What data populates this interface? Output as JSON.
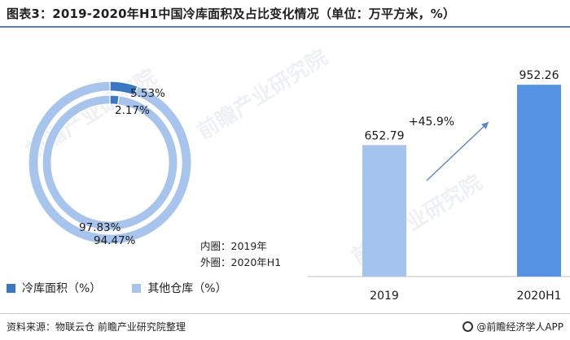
{
  "title": "图表3：2019-2020年H1中国冷库面积及占比变化情况（单位：万平方米，%）",
  "legend": [
    {
      "label": "冷库面积（%）",
      "color": "#3a78c6"
    },
    {
      "label": "其他仓库（%）",
      "color": "#a7c4ec"
    }
  ],
  "note": {
    "inner": "内圈：2019年",
    "outer": "外圈：2020年H1"
  },
  "footer": {
    "source": "资料来源：物联云仓 前瞻产业研究院整理",
    "brand": "@前瞻经济学人APP"
  },
  "watermark": "前瞻产业研究院",
  "colors": {
    "primary": "#3a78c6",
    "light": "#a7c4ec",
    "bar_light": "#a4c3ef",
    "bar_dark": "#5592e3",
    "arrow": "#5b86c8"
  },
  "chart_data": [
    {
      "type": "pie",
      "subtype": "double-donut",
      "series": [
        {
          "name": "2019",
          "ring": "inner",
          "labels": [
            "冷库面积",
            "其他仓库"
          ],
          "values": [
            2.17,
            97.83
          ],
          "value_labels": [
            "2.17%",
            "97.83%"
          ]
        },
        {
          "name": "2020H1",
          "ring": "outer",
          "labels": [
            "冷库面积",
            "其他仓库"
          ],
          "values": [
            5.53,
            94.47
          ],
          "value_labels": [
            "5.53%",
            "94.47%"
          ]
        }
      ]
    },
    {
      "type": "bar",
      "categories": [
        "2019",
        "2020H1"
      ],
      "values": [
        652.79,
        952.26
      ],
      "value_labels": [
        "652.79",
        "952.26"
      ],
      "ylim": [
        0,
        1050
      ],
      "annotation": "+45.9%"
    }
  ]
}
